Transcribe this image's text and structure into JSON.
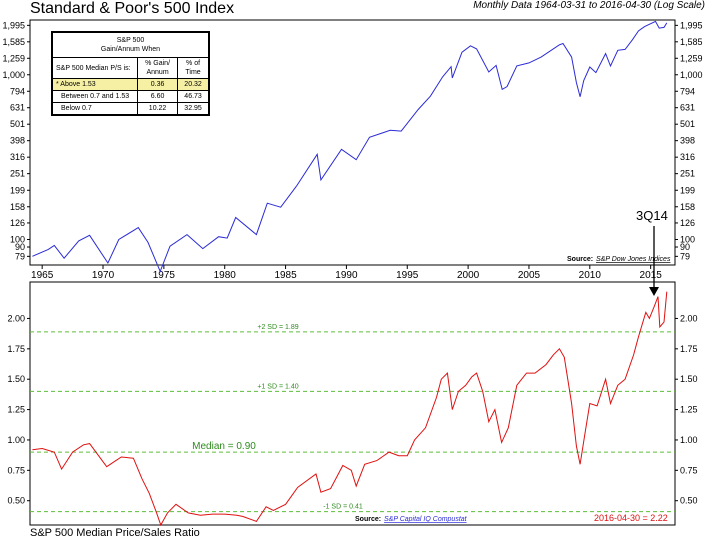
{
  "title": "Standard & Poor's 500 Index",
  "subtitle": "Monthly Data 1964-03-31 to 2016-04-30 (Log Scale)",
  "bottom_title": "S&P 500 Median Price/Sales Ratio",
  "legend": {
    "header_line1": "S&P 500",
    "header_line2": "Gain/Annum When",
    "col1": "S&P 500 Median P/S is:",
    "col2_line1": "% Gain/",
    "col2_line2": "Annum",
    "col3_line1": "% of",
    "col3_line2": "Time",
    "rows": [
      {
        "label": "* Above 1.53",
        "gain": "0.36",
        "time": "20.32",
        "highlight": true
      },
      {
        "label": "Between 0.7 and 1.53",
        "gain": "6.60",
        "time": "46.73",
        "highlight": false
      },
      {
        "label": "Below 0.7",
        "gain": "10.22",
        "time": "32.95",
        "highlight": false
      }
    ]
  },
  "top_source_label": "Source:",
  "top_source": "S&P Dow Jones Indices",
  "bottom_source_label": "Source:",
  "bottom_source": "S&P Capital IQ Compustat",
  "annotation_3q14": "3Q14",
  "end_value_label": "2016-04-30 = 2.22",
  "colors": {
    "top_line": "#2b2bd6",
    "bottom_line": "#e01010",
    "ref_line": "#5cbf3a",
    "ref_text": "#2e8b1e"
  },
  "chart_data": [
    {
      "type": "line",
      "series": [
        {
          "values": [
            [
              1964.2,
              79
            ],
            [
              1965.5,
              87
            ],
            [
              1966.0,
              92
            ],
            [
              1966.8,
              77
            ],
            [
              1968.0,
              98
            ],
            [
              1968.9,
              106
            ],
            [
              1970.4,
              72
            ],
            [
              1971.3,
              100
            ],
            [
              1972.9,
              118
            ],
            [
              1973.7,
              96
            ],
            [
              1974.7,
              64
            ],
            [
              1975.5,
              91
            ],
            [
              1976.9,
              107
            ],
            [
              1978.2,
              88
            ],
            [
              1979.5,
              104
            ],
            [
              1980.2,
              102
            ],
            [
              1980.9,
              136
            ],
            [
              1982.6,
              107
            ],
            [
              1983.5,
              166
            ],
            [
              1984.6,
              157
            ],
            [
              1985.9,
              211
            ],
            [
              1987.6,
              329
            ],
            [
              1987.9,
              230
            ],
            [
              1989.6,
              353
            ],
            [
              1990.8,
              305
            ],
            [
              1991.9,
              417
            ],
            [
              1993.6,
              460
            ],
            [
              1994.5,
              455
            ],
            [
              1995.9,
              615
            ],
            [
              1996.9,
              741
            ],
            [
              1997.9,
              970
            ],
            [
              1998.6,
              1120
            ],
            [
              1998.7,
              957
            ],
            [
              1999.5,
              1370
            ],
            [
              2000.2,
              1498
            ],
            [
              2000.7,
              1436
            ],
            [
              2001.7,
              1040
            ],
            [
              2002.3,
              1140
            ],
            [
              2002.8,
              815
            ],
            [
              2003.2,
              849
            ],
            [
              2004.0,
              1132
            ],
            [
              2005.0,
              1181
            ],
            [
              2006.0,
              1280
            ],
            [
              2007.5,
              1520
            ],
            [
              2007.8,
              1549
            ],
            [
              2008.5,
              1280
            ],
            [
              2008.9,
              896
            ],
            [
              2009.2,
              735
            ],
            [
              2009.5,
              920
            ],
            [
              2010.0,
              1115
            ],
            [
              2010.5,
              1030
            ],
            [
              2011.3,
              1345
            ],
            [
              2011.7,
              1131
            ],
            [
              2012.3,
              1408
            ],
            [
              2012.9,
              1426
            ],
            [
              2013.5,
              1630
            ],
            [
              2014.0,
              1848
            ],
            [
              2014.5,
              1960
            ],
            [
              2015.4,
              2107
            ],
            [
              2015.7,
              1920
            ],
            [
              2016.1,
              1940
            ],
            [
              2016.33,
              2065
            ]
          ]
        }
      ],
      "xlim": [
        1964,
        2017
      ],
      "x_ticks": [
        "1965",
        "1970",
        "1975",
        "1980",
        "1985",
        "1990",
        "1995",
        "2000",
        "2005",
        "2010",
        "2015"
      ],
      "y_ticks": [
        "79",
        "90",
        "100",
        "126",
        "158",
        "199",
        "251",
        "316",
        "398",
        "501",
        "631",
        "794",
        "1,000",
        "1,259",
        "1,585",
        "1,995"
      ],
      "y_scale": "log",
      "ylim": [
        70,
        2150
      ],
      "grid": false
    },
    {
      "type": "line",
      "series": [
        {
          "values": [
            [
              1964.2,
              0.92
            ],
            [
              1965.0,
              0.93
            ],
            [
              1966.0,
              0.9
            ],
            [
              1966.6,
              0.76
            ],
            [
              1967.5,
              0.9
            ],
            [
              1968.4,
              0.96
            ],
            [
              1968.9,
              0.97
            ],
            [
              1970.3,
              0.78
            ],
            [
              1970.9,
              0.82
            ],
            [
              1971.5,
              0.86
            ],
            [
              1972.5,
              0.85
            ],
            [
              1973.2,
              0.68
            ],
            [
              1973.8,
              0.56
            ],
            [
              1974.4,
              0.4
            ],
            [
              1974.75,
              0.3
            ],
            [
              1975.3,
              0.4
            ],
            [
              1976.0,
              0.47
            ],
            [
              1977.0,
              0.4
            ],
            [
              1978.0,
              0.38
            ],
            [
              1979.0,
              0.39
            ],
            [
              1980.0,
              0.39
            ],
            [
              1981.0,
              0.38
            ],
            [
              1981.5,
              0.37
            ],
            [
              1982.6,
              0.33
            ],
            [
              1983.4,
              0.45
            ],
            [
              1984.0,
              0.42
            ],
            [
              1985.0,
              0.47
            ],
            [
              1986.0,
              0.61
            ],
            [
              1987.5,
              0.72
            ],
            [
              1987.9,
              0.57
            ],
            [
              1988.7,
              0.6
            ],
            [
              1989.7,
              0.79
            ],
            [
              1990.4,
              0.75
            ],
            [
              1990.8,
              0.62
            ],
            [
              1991.5,
              0.8
            ],
            [
              1992.5,
              0.83
            ],
            [
              1993.5,
              0.9
            ],
            [
              1994.3,
              0.87
            ],
            [
              1995.0,
              0.87
            ],
            [
              1995.6,
              1.0
            ],
            [
              1996.5,
              1.1
            ],
            [
              1997.4,
              1.35
            ],
            [
              1997.8,
              1.5
            ],
            [
              1998.3,
              1.55
            ],
            [
              1998.7,
              1.25
            ],
            [
              1999.2,
              1.4
            ],
            [
              1999.8,
              1.45
            ],
            [
              2000.3,
              1.52
            ],
            [
              2000.7,
              1.55
            ],
            [
              2001.2,
              1.4
            ],
            [
              2001.7,
              1.15
            ],
            [
              2002.2,
              1.25
            ],
            [
              2002.75,
              0.98
            ],
            [
              2003.3,
              1.1
            ],
            [
              2004.0,
              1.45
            ],
            [
              2004.8,
              1.55
            ],
            [
              2005.5,
              1.55
            ],
            [
              2006.4,
              1.62
            ],
            [
              2007.0,
              1.7
            ],
            [
              2007.5,
              1.75
            ],
            [
              2007.9,
              1.68
            ],
            [
              2008.5,
              1.3
            ],
            [
              2008.9,
              0.95
            ],
            [
              2009.2,
              0.8
            ],
            [
              2009.6,
              1.05
            ],
            [
              2010.0,
              1.3
            ],
            [
              2010.6,
              1.28
            ],
            [
              2011.3,
              1.5
            ],
            [
              2011.7,
              1.3
            ],
            [
              2012.3,
              1.45
            ],
            [
              2012.9,
              1.5
            ],
            [
              2013.6,
              1.7
            ],
            [
              2014.0,
              1.85
            ],
            [
              2014.6,
              2.05
            ],
            [
              2014.9,
              2.0
            ],
            [
              2015.3,
              2.1
            ],
            [
              2015.6,
              2.18
            ],
            [
              2015.75,
              1.93
            ],
            [
              2016.1,
              1.97
            ],
            [
              2016.33,
              2.22
            ]
          ]
        }
      ],
      "xlim": [
        1964,
        2017
      ],
      "y_ticks": [
        "0.50",
        "0.75",
        "1.00",
        "1.25",
        "1.50",
        "1.75",
        "2.00"
      ],
      "ylim": [
        0.3,
        2.3
      ],
      "ref_lines": [
        {
          "value": 1.89,
          "label": "+2 SD = 1.89"
        },
        {
          "value": 1.4,
          "label": "+1 SD = 1.40"
        },
        {
          "value": 0.9,
          "label": "Median = 0.90"
        },
        {
          "value": 0.41,
          "label": "-1 SD = 0.41"
        }
      ],
      "grid": false
    }
  ]
}
